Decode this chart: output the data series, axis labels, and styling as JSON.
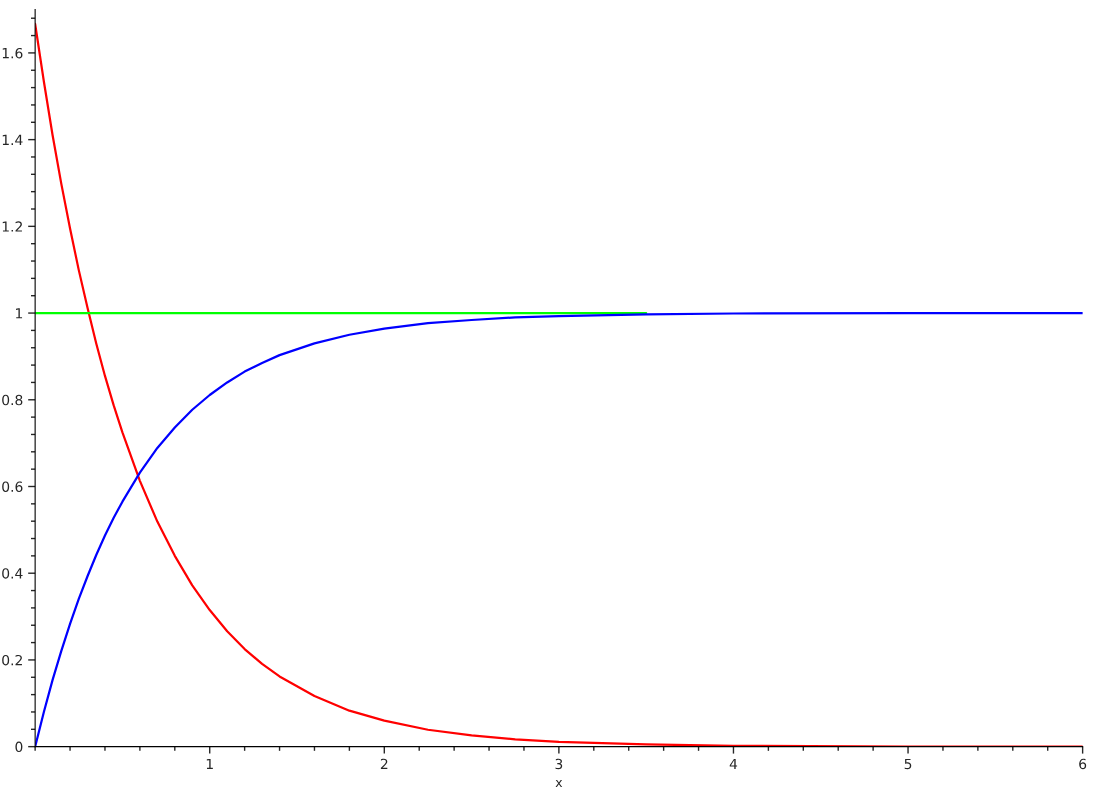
{
  "chart_data": {
    "type": "line",
    "xlabel": "x",
    "xlim": [
      0,
      6
    ],
    "ylim": [
      0,
      1.7
    ],
    "xticks": [
      1,
      2,
      3,
      4,
      5,
      6
    ],
    "yticks": [
      0,
      0.2,
      0.4,
      0.6,
      0.8,
      1,
      1.2,
      1.4,
      1.6
    ],
    "grid": false,
    "marker": "none",
    "line_style": "solid",
    "series": [
      {
        "color": "#ff0000",
        "x": [
          0,
          0.05,
          0.1,
          0.15,
          0.2,
          0.25,
          0.3,
          0.35,
          0.4,
          0.45,
          0.5,
          0.6,
          0.7,
          0.8,
          0.9,
          1.0,
          1.1,
          1.2,
          1.3,
          1.4,
          1.6,
          1.8,
          2.0,
          2.25,
          2.5,
          2.75,
          3.0,
          3.5,
          4.0,
          5.0,
          6.0
        ],
        "values": [
          1.667,
          1.534,
          1.41,
          1.298,
          1.195,
          1.099,
          1.012,
          0.93,
          0.855,
          0.787,
          0.725,
          0.613,
          0.519,
          0.44,
          0.372,
          0.315,
          0.266,
          0.225,
          0.191,
          0.162,
          0.117,
          0.083,
          0.06,
          0.039,
          0.026,
          0.017,
          0.011,
          0.005,
          0.002,
          0,
          0
        ]
      },
      {
        "color": "#00ff00",
        "x": [
          0,
          3.5
        ],
        "values": [
          1,
          1
        ]
      },
      {
        "color": "#0000ff",
        "x": [
          0,
          0.05,
          0.1,
          0.15,
          0.2,
          0.25,
          0.3,
          0.35,
          0.4,
          0.45,
          0.5,
          0.6,
          0.7,
          0.8,
          0.9,
          1.0,
          1.1,
          1.2,
          1.3,
          1.4,
          1.6,
          1.8,
          2.0,
          2.25,
          2.5,
          2.75,
          3.0,
          3.5,
          4.0,
          5.0,
          6.0
        ],
        "values": [
          0,
          0.08,
          0.154,
          0.221,
          0.283,
          0.341,
          0.393,
          0.442,
          0.487,
          0.528,
          0.565,
          0.632,
          0.689,
          0.736,
          0.777,
          0.811,
          0.84,
          0.865,
          0.885,
          0.903,
          0.93,
          0.95,
          0.964,
          0.977,
          0.984,
          0.99,
          0.993,
          0.997,
          0.999,
          1,
          1
        ]
      }
    ]
  }
}
